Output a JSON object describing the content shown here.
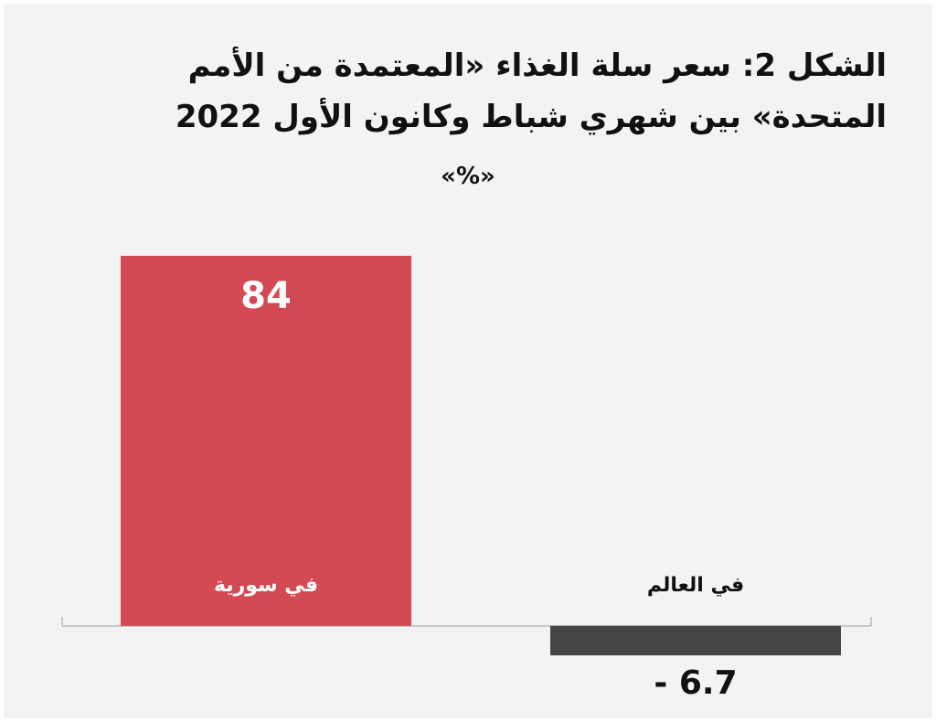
{
  "chart_data": {
    "type": "bar",
    "title": "الشكل 2: سعر سلة الغذاء «المعتمدة من الأمم المتحدة» بين شهري شباط وكانون الأول 2022",
    "subtitle": "«%»",
    "categories": [
      "في سورية",
      "في العالم"
    ],
    "values": [
      84,
      -6.7
    ],
    "value_labels": [
      "84",
      "- 6.7"
    ],
    "colors": [
      "#d34a55",
      "#454545"
    ],
    "ylim": [
      -10,
      90
    ]
  }
}
